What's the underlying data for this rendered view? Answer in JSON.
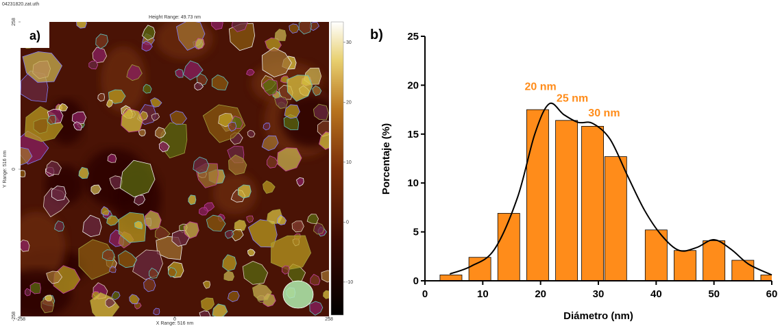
{
  "chart_data": [
    {
      "type": "image",
      "file": "04231820.zat.uth",
      "panel_label": "a)",
      "title": "Height Range: 49.73 nm",
      "xlabel": "X Range: 516 nm",
      "ylabel": "Y Range: 516 nm",
      "xlim": [
        -258,
        258
      ],
      "xticks": [
        -258,
        0,
        258
      ],
      "ylim": [
        -258,
        258
      ],
      "yticks": [
        -258,
        0,
        258
      ],
      "colorbar": {
        "lim": [
          -15.5,
          33.4
        ],
        "ticks": [
          -10,
          0,
          10,
          20,
          30
        ]
      }
    },
    {
      "type": "bar",
      "panel_label": "b)",
      "xlabel": "Diámetro (nm)",
      "ylabel": "Porcentaje (%)",
      "x": [
        4.5,
        9.5,
        14.5,
        19.5,
        24.5,
        29,
        33,
        40,
        45,
        50,
        55,
        60
      ],
      "bar_width": 3.8,
      "values": [
        0.6,
        2.4,
        6.9,
        17.5,
        16.4,
        15.8,
        12.7,
        5.2,
        3.1,
        4.1,
        2.1,
        0.6
      ],
      "color": "#ff8c1a",
      "edgecolor": "#000000",
      "fit": {
        "x": [
          4.3,
          8,
          12,
          16,
          19,
          21.5,
          24,
          26.5,
          29,
          32,
          35,
          38,
          41,
          44,
          47,
          50,
          53,
          56,
          60
        ],
        "values": [
          0.7,
          1.5,
          3.2,
          8.5,
          15,
          18.1,
          17,
          16.2,
          16.1,
          14.5,
          10.8,
          7.2,
          4.6,
          3.1,
          3.4,
          4.2,
          3.2,
          1.7,
          0.6
        ],
        "color": "#000000"
      },
      "annotations": [
        {
          "text": "20 nm",
          "x": 20,
          "y": 19.5
        },
        {
          "text": "25 nm",
          "x": 25.5,
          "y": 18.3
        },
        {
          "text": "30 nm",
          "x": 31,
          "y": 16.8
        }
      ],
      "annotation_color": "#ff8c1a",
      "xlim": [
        0,
        60
      ],
      "xticks": [
        0,
        10,
        20,
        30,
        40,
        50,
        60
      ],
      "ylim": [
        0,
        25
      ],
      "yticks": [
        0,
        5,
        10,
        15,
        20,
        25
      ]
    }
  ]
}
